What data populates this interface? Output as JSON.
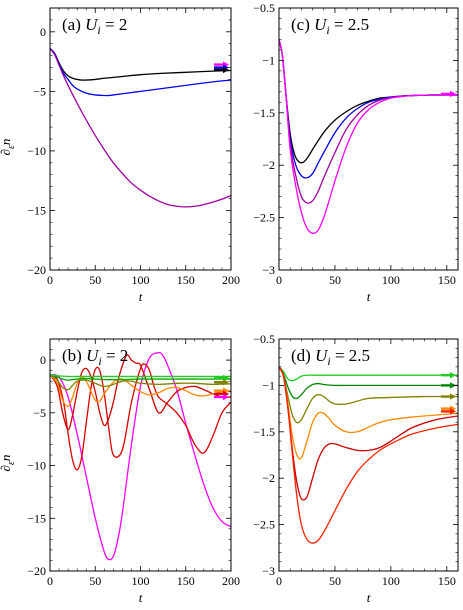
{
  "chart_data": [
    {
      "type": "line",
      "title": "(a) U_i = 2",
      "title_parts": {
        "tag": "(a)",
        "sym": "U",
        "sub": "i",
        "rest": " = 2"
      },
      "xlabel": "t",
      "ylabel": "∂_ε n",
      "ylabel_parts": {
        "sym": "∂",
        "sub": "ε",
        "rest": "n"
      },
      "xlim": [
        0,
        200
      ],
      "ylim": [
        -20,
        2
      ],
      "xticks": [
        0,
        50,
        100,
        150,
        200
      ],
      "yticks": [
        -20,
        -15,
        -10,
        -5,
        0
      ],
      "show_ytick_labels": true,
      "series": [
        {
          "color": "#000000",
          "x": [
            0,
            5,
            10,
            15,
            20,
            25,
            30,
            35,
            40,
            50,
            60,
            80,
            100,
            120,
            150,
            180,
            200
          ],
          "y": [
            -1.4,
            -1.8,
            -2.6,
            -3.3,
            -3.7,
            -3.9,
            -4.0,
            -4.05,
            -4.05,
            -4.0,
            -3.9,
            -3.75,
            -3.6,
            -3.5,
            -3.4,
            -3.3,
            -3.25
          ]
        },
        {
          "color": "#0000ee",
          "x": [
            0,
            5,
            10,
            15,
            20,
            25,
            30,
            40,
            50,
            60,
            65,
            70,
            80,
            100,
            120,
            150,
            180,
            200
          ],
          "y": [
            -1.4,
            -1.8,
            -2.7,
            -3.5,
            -4.0,
            -4.5,
            -4.8,
            -5.15,
            -5.3,
            -5.35,
            -5.35,
            -5.3,
            -5.2,
            -5.0,
            -4.8,
            -4.5,
            -4.2,
            -4.05
          ]
        },
        {
          "color": "#a000a0",
          "x": [
            0,
            5,
            10,
            15,
            20,
            30,
            40,
            50,
            60,
            70,
            80,
            90,
            100,
            110,
            120,
            130,
            140,
            150,
            160,
            170,
            180,
            190,
            200
          ],
          "y": [
            -1.4,
            -1.9,
            -2.8,
            -3.7,
            -4.5,
            -6.0,
            -7.4,
            -8.7,
            -9.9,
            -11.0,
            -11.9,
            -12.7,
            -13.3,
            -13.8,
            -14.2,
            -14.5,
            -14.65,
            -14.7,
            -14.65,
            -14.5,
            -14.3,
            -14.05,
            -13.75
          ]
        }
      ],
      "arrows": [
        {
          "y": -2.75,
          "color": "#ff00ff"
        },
        {
          "y": -3.0,
          "color": "#0000ee"
        },
        {
          "y": -3.2,
          "color": "#000000"
        }
      ]
    },
    {
      "type": "line",
      "title": "(c) U_i = 2.5",
      "title_parts": {
        "tag": "(c)",
        "sym": "U",
        "sub": "i",
        "rest": " = 2.5"
      },
      "xlabel": "t",
      "ylabel": "",
      "xlim": [
        0,
        160
      ],
      "ylim": [
        -3.0,
        -0.5
      ],
      "xticks": [
        0,
        50,
        100,
        150
      ],
      "yticks": [
        -3.0,
        -2.5,
        -2.0,
        -1.5,
        -1.0,
        -0.5
      ],
      "show_ytick_labels": true,
      "series": [
        {
          "color": "#000000",
          "x": [
            0,
            3,
            6,
            10,
            14,
            18,
            22,
            26,
            30,
            36,
            42,
            50,
            60,
            70,
            80,
            90,
            100,
            110,
            120,
            135,
            150,
            160
          ],
          "y": [
            -0.8,
            -0.95,
            -1.3,
            -1.7,
            -1.9,
            -1.97,
            -1.97,
            -1.92,
            -1.85,
            -1.75,
            -1.66,
            -1.57,
            -1.49,
            -1.43,
            -1.39,
            -1.36,
            -1.35,
            -1.34,
            -1.335,
            -1.33,
            -1.33,
            -1.33
          ]
        },
        {
          "color": "#0000ee",
          "x": [
            0,
            3,
            6,
            10,
            15,
            20,
            25,
            30,
            35,
            40,
            50,
            60,
            70,
            80,
            90,
            100,
            110,
            120,
            135,
            150,
            160
          ],
          "y": [
            -0.8,
            -0.95,
            -1.3,
            -1.75,
            -2.0,
            -2.1,
            -2.12,
            -2.08,
            -1.98,
            -1.88,
            -1.69,
            -1.55,
            -1.46,
            -1.4,
            -1.37,
            -1.35,
            -1.34,
            -1.335,
            -1.33,
            -1.33,
            -1.33
          ]
        },
        {
          "color": "#a000a0",
          "x": [
            0,
            3,
            6,
            10,
            15,
            20,
            25,
            30,
            35,
            40,
            50,
            60,
            70,
            80,
            90,
            100,
            110,
            120,
            135,
            150,
            160
          ],
          "y": [
            -0.8,
            -0.95,
            -1.3,
            -1.8,
            -2.1,
            -2.3,
            -2.36,
            -2.34,
            -2.25,
            -2.12,
            -1.88,
            -1.66,
            -1.52,
            -1.43,
            -1.38,
            -1.355,
            -1.34,
            -1.335,
            -1.33,
            -1.33,
            -1.33
          ]
        },
        {
          "color": "#ff00ff",
          "x": [
            0,
            3,
            6,
            10,
            15,
            20,
            25,
            30,
            35,
            40,
            45,
            50,
            60,
            70,
            80,
            90,
            100,
            110,
            120,
            135,
            150,
            160
          ],
          "y": [
            -0.8,
            -0.95,
            -1.3,
            -1.85,
            -2.2,
            -2.45,
            -2.6,
            -2.65,
            -2.62,
            -2.5,
            -2.33,
            -2.15,
            -1.83,
            -1.6,
            -1.47,
            -1.4,
            -1.36,
            -1.345,
            -1.335,
            -1.33,
            -1.33,
            -1.33
          ]
        }
      ],
      "arrows": [
        {
          "y": -1.32,
          "color": "#ff00ff"
        }
      ]
    },
    {
      "type": "line",
      "title": "(b) U_i = 2",
      "title_parts": {
        "tag": "(b)",
        "sym": "U",
        "sub": "i",
        "rest": " = 2"
      },
      "xlabel": "t",
      "ylabel": "∂_ε n",
      "ylabel_parts": {
        "sym": "∂",
        "sub": "ε",
        "rest": "n"
      },
      "xlim": [
        0,
        200
      ],
      "ylim": [
        -20,
        2
      ],
      "xticks": [
        0,
        50,
        100,
        150,
        200
      ],
      "yticks": [
        -20,
        -15,
        -10,
        -5,
        0
      ],
      "show_ytick_labels": true,
      "series": [
        {
          "color": "#ff00ff",
          "x": [
            0,
            10,
            20,
            30,
            40,
            50,
            60,
            65,
            70,
            75,
            80,
            90,
            100,
            110,
            120,
            125,
            130,
            140,
            150,
            160,
            170,
            180,
            190,
            200
          ],
          "y": [
            -1.4,
            -1.6,
            -3.5,
            -7.0,
            -11.0,
            -15.0,
            -18.2,
            -18.9,
            -18.6,
            -17.0,
            -14.5,
            -8.0,
            -2.5,
            0.2,
            0.7,
            0.4,
            -0.5,
            -2.8,
            -6.0,
            -9.0,
            -11.8,
            -14.0,
            -15.3,
            -15.8
          ]
        },
        {
          "color": "#dd0000",
          "x": [
            0,
            8,
            15,
            20,
            25,
            30,
            35,
            40,
            45,
            50,
            55,
            60,
            65,
            70,
            80,
            90,
            100,
            105,
            110,
            115,
            120,
            130,
            140,
            150,
            160,
            170,
            180,
            190,
            200
          ],
          "y": [
            -1.4,
            -1.8,
            -4.0,
            -7.0,
            -9.5,
            -10.4,
            -9.2,
            -6.0,
            -2.8,
            -0.9,
            -1.0,
            -3.2,
            -6.5,
            -9.0,
            -8.5,
            -4.0,
            -0.8,
            -0.4,
            -1.0,
            -2.5,
            -3.5,
            -4.2,
            -5.0,
            -6.2,
            -8.0,
            -8.8,
            -7.2,
            -5.0,
            -4.0
          ]
        },
        {
          "color": "#cc0000",
          "x": [
            0,
            8,
            14,
            20,
            25,
            30,
            35,
            40,
            45,
            50,
            55,
            60,
            65,
            70,
            75,
            80,
            85,
            90,
            95,
            100,
            110,
            120,
            130,
            140,
            150,
            160,
            170,
            180,
            190,
            200
          ],
          "y": [
            -1.4,
            -2.5,
            -5.0,
            -6.6,
            -5.2,
            -3.0,
            -1.2,
            -0.8,
            -1.5,
            -3.0,
            -5.0,
            -6.2,
            -5.5,
            -4.0,
            -2.0,
            -0.5,
            0.5,
            0.0,
            -0.3,
            -0.5,
            -2.8,
            -5.0,
            -4.0,
            -3.0,
            -2.6,
            -2.5,
            -2.8,
            -3.2,
            -3.5,
            -3.5
          ]
        },
        {
          "color": "#ff8800",
          "x": [
            0,
            8,
            14,
            20,
            25,
            30,
            35,
            40,
            45,
            50,
            55,
            60,
            70,
            80,
            90,
            100,
            110,
            120,
            130,
            140,
            150,
            160,
            170,
            180,
            190,
            200
          ],
          "y": [
            -1.4,
            -2.2,
            -3.8,
            -4.4,
            -3.5,
            -2.2,
            -1.6,
            -2.0,
            -2.9,
            -3.8,
            -3.9,
            -3.2,
            -2.1,
            -1.8,
            -2.4,
            -3.0,
            -3.3,
            -3.1,
            -2.7,
            -2.6,
            -2.9,
            -3.3,
            -3.4,
            -3.2,
            -3.0,
            -2.9
          ]
        },
        {
          "color": "#808000",
          "x": [
            0,
            8,
            14,
            20,
            25,
            30,
            40,
            50,
            60,
            70,
            80,
            90,
            100,
            120,
            140,
            160,
            180,
            200
          ],
          "y": [
            -1.4,
            -1.9,
            -2.6,
            -2.8,
            -2.4,
            -2.0,
            -1.9,
            -2.2,
            -2.5,
            -2.3,
            -2.0,
            -2.0,
            -2.2,
            -2.3,
            -2.2,
            -2.2,
            -2.3,
            -2.25
          ]
        },
        {
          "color": "#00aa00",
          "x": [
            0,
            8,
            14,
            20,
            30,
            40,
            60,
            80,
            100,
            140,
            200
          ],
          "y": [
            -1.4,
            -1.6,
            -1.8,
            -1.9,
            -1.8,
            -1.75,
            -1.85,
            -1.85,
            -1.8,
            -1.8,
            -1.8
          ]
        },
        {
          "color": "#22cc22",
          "x": [
            0,
            10,
            20,
            40,
            80,
            120,
            160,
            200
          ],
          "y": [
            -1.4,
            -1.5,
            -1.55,
            -1.55,
            -1.55,
            -1.55,
            -1.55,
            -1.55
          ]
        }
      ],
      "arrows": [
        {
          "y": -1.7,
          "color": "#22cc22"
        },
        {
          "y": -2.1,
          "color": "#808000"
        },
        {
          "y": -2.9,
          "color": "#ff8800"
        },
        {
          "y": -3.2,
          "color": "#dd0000"
        },
        {
          "y": -3.5,
          "color": "#ff00ff"
        }
      ]
    },
    {
      "type": "line",
      "title": "(d) U_i = 2.5",
      "title_parts": {
        "tag": "(d)",
        "sym": "U",
        "sub": "i",
        "rest": " = 2.5"
      },
      "xlabel": "t",
      "ylabel": "",
      "xlim": [
        0,
        160
      ],
      "ylim": [
        -3.0,
        -0.5
      ],
      "xticks": [
        0,
        50,
        100,
        150
      ],
      "yticks": [
        -3.0,
        -2.5,
        -2.0,
        -1.5,
        -1.0,
        -0.5
      ],
      "show_ytick_labels": true,
      "series": [
        {
          "color": "#22cc22",
          "x": [
            0,
            4,
            8,
            12,
            16,
            20,
            25,
            30,
            40,
            60,
            80,
            100,
            130,
            160
          ],
          "y": [
            -0.8,
            -0.85,
            -0.93,
            -0.95,
            -0.93,
            -0.9,
            -0.89,
            -0.89,
            -0.89,
            -0.89,
            -0.89,
            -0.89,
            -0.89,
            -0.89
          ]
        },
        {
          "color": "#008800",
          "x": [
            0,
            4,
            8,
            12,
            16,
            20,
            25,
            30,
            35,
            40,
            50,
            60,
            80,
            100,
            130,
            160
          ],
          "y": [
            -0.8,
            -0.88,
            -1.02,
            -1.12,
            -1.14,
            -1.1,
            -1.03,
            -0.99,
            -0.98,
            -0.99,
            -1.0,
            -1.0,
            -1.0,
            -1.0,
            -1.0,
            -1.0
          ]
        },
        {
          "color": "#808000",
          "x": [
            0,
            4,
            8,
            12,
            16,
            20,
            25,
            30,
            35,
            40,
            45,
            50,
            60,
            70,
            80,
            100,
            130,
            160
          ],
          "y": [
            -0.8,
            -0.9,
            -1.12,
            -1.32,
            -1.4,
            -1.37,
            -1.25,
            -1.14,
            -1.1,
            -1.12,
            -1.17,
            -1.2,
            -1.2,
            -1.17,
            -1.14,
            -1.13,
            -1.12,
            -1.12
          ]
        },
        {
          "color": "#ff8800",
          "x": [
            0,
            4,
            8,
            12,
            16,
            20,
            25,
            30,
            35,
            40,
            45,
            50,
            60,
            70,
            80,
            90,
            100,
            120,
            140,
            160
          ],
          "y": [
            -0.8,
            -0.9,
            -1.2,
            -1.55,
            -1.75,
            -1.78,
            -1.6,
            -1.4,
            -1.3,
            -1.3,
            -1.36,
            -1.43,
            -1.5,
            -1.5,
            -1.45,
            -1.4,
            -1.37,
            -1.34,
            -1.32,
            -1.3
          ]
        },
        {
          "color": "#cc0000",
          "x": [
            0,
            4,
            8,
            12,
            16,
            20,
            25,
            30,
            35,
            40,
            45,
            50,
            55,
            60,
            70,
            80,
            90,
            100,
            110,
            120,
            140,
            160
          ],
          "y": [
            -0.8,
            -0.9,
            -1.25,
            -1.7,
            -2.05,
            -2.22,
            -2.2,
            -2.0,
            -1.8,
            -1.68,
            -1.63,
            -1.63,
            -1.65,
            -1.67,
            -1.7,
            -1.7,
            -1.67,
            -1.6,
            -1.52,
            -1.45,
            -1.37,
            -1.33
          ]
        },
        {
          "color": "#ff2200",
          "x": [
            0,
            4,
            8,
            12,
            16,
            20,
            25,
            30,
            35,
            40,
            45,
            50,
            60,
            70,
            80,
            90,
            100,
            110,
            120,
            140,
            160
          ],
          "y": [
            -0.8,
            -0.9,
            -1.25,
            -1.75,
            -2.2,
            -2.5,
            -2.66,
            -2.7,
            -2.67,
            -2.58,
            -2.47,
            -2.35,
            -2.12,
            -1.93,
            -1.8,
            -1.7,
            -1.63,
            -1.57,
            -1.52,
            -1.46,
            -1.42
          ]
        }
      ],
      "arrows": [
        {
          "y": -0.89,
          "color": "#22cc22"
        },
        {
          "y": -1.0,
          "color": "#008800"
        },
        {
          "y": -1.12,
          "color": "#808000"
        },
        {
          "y": -1.25,
          "color": "#ff8800"
        },
        {
          "y": -1.28,
          "color": "#ff2200"
        }
      ]
    }
  ]
}
